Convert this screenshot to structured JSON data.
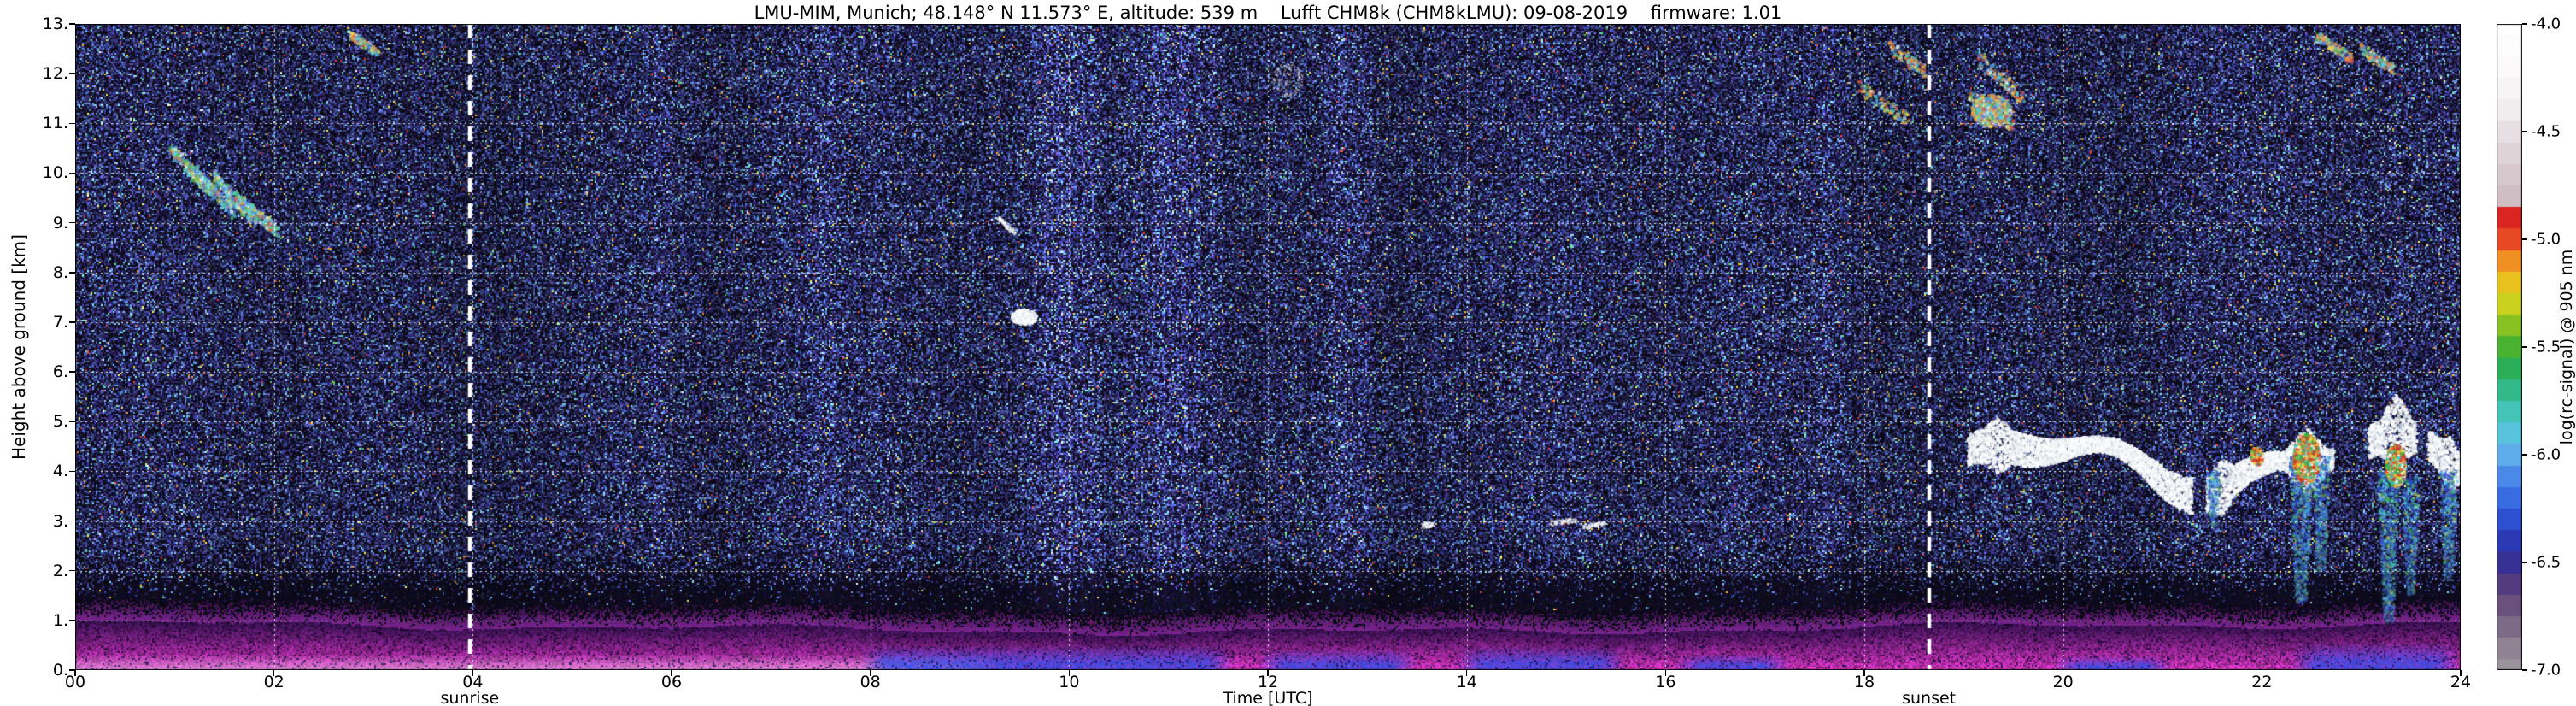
{
  "chart_data": {
    "type": "heatmap",
    "title": "LMU-MIM, Munich; 48.148° N 11.573° E, altitude: 539 m    Lufft CHM8k (CHM8kLMU): 09-08-2019    firmware: 1.01",
    "xlabel": "Time [UTC]",
    "ylabel": "Height above ground [km]",
    "colorbar_label": "log(rc-signal) @ 905 nm",
    "x_range": [
      0,
      24
    ],
    "y_range": [
      0,
      13
    ],
    "x_ticks": [
      {
        "t": 0,
        "label": "00"
      },
      {
        "t": 2,
        "label": "02"
      },
      {
        "t": 4,
        "label": "04"
      },
      {
        "t": 6,
        "label": "06"
      },
      {
        "t": 8,
        "label": "08"
      },
      {
        "t": 10,
        "label": "10"
      },
      {
        "t": 12,
        "label": "12"
      },
      {
        "t": 14,
        "label": "14"
      },
      {
        "t": 16,
        "label": "16"
      },
      {
        "t": 18,
        "label": "18"
      },
      {
        "t": 20,
        "label": "20"
      },
      {
        "t": 22,
        "label": "22"
      },
      {
        "t": 24,
        "label": "24"
      }
    ],
    "y_ticks": [
      {
        "h": 0,
        "label": "0."
      },
      {
        "h": 1,
        "label": "1."
      },
      {
        "h": 2,
        "label": "2."
      },
      {
        "h": 3,
        "label": "3."
      },
      {
        "h": 4,
        "label": "4."
      },
      {
        "h": 5,
        "label": "5."
      },
      {
        "h": 6,
        "label": "6."
      },
      {
        "h": 7,
        "label": "7."
      },
      {
        "h": 8,
        "label": "8."
      },
      {
        "h": 9,
        "label": "9."
      },
      {
        "h": 10,
        "label": "10."
      },
      {
        "h": 11,
        "label": "11."
      },
      {
        "h": 12,
        "label": "12."
      },
      {
        "h": 13,
        "label": "13."
      }
    ],
    "colorbar_ticks": [
      {
        "v": -4.0,
        "label": "-4.0"
      },
      {
        "v": -4.5,
        "label": "-4.5"
      },
      {
        "v": -5.0,
        "label": "-5.0"
      },
      {
        "v": -5.5,
        "label": "-5.5"
      },
      {
        "v": -6.0,
        "label": "-6.0"
      },
      {
        "v": -6.5,
        "label": "-6.5"
      },
      {
        "v": -7.0,
        "label": "-7.0"
      }
    ],
    "colorbar_range": [
      -7.0,
      -4.0
    ],
    "grid": {
      "x_step": 2,
      "y_step": 1,
      "style": "dotted",
      "color": "#ffffff"
    },
    "annotations": [
      {
        "label": "sunrise",
        "x": 3.97
      },
      {
        "label": "sunset",
        "x": 18.65
      }
    ],
    "colormap": [
      [
        -7.0,
        "#9b939b"
      ],
      [
        -6.9,
        "#8f8292"
      ],
      [
        -6.8,
        "#7d6a86"
      ],
      [
        -6.7,
        "#6a517d"
      ],
      [
        -6.62,
        "#5a3f7e"
      ],
      [
        -6.55,
        "#433387"
      ],
      [
        -6.47,
        "#31309e"
      ],
      [
        -6.38,
        "#2a3cbc"
      ],
      [
        -6.28,
        "#2f55d6"
      ],
      [
        -6.18,
        "#3c71e4"
      ],
      [
        -6.08,
        "#4f90ea"
      ],
      [
        -5.98,
        "#63b4ec"
      ],
      [
        -5.88,
        "#55c8d8"
      ],
      [
        -5.78,
        "#3fc4ae"
      ],
      [
        -5.68,
        "#2fb780"
      ],
      [
        -5.58,
        "#2aac4f"
      ],
      [
        -5.48,
        "#51b42a"
      ],
      [
        -5.38,
        "#97c520"
      ],
      [
        -5.28,
        "#d6d51e"
      ],
      [
        -5.18,
        "#eebc1e"
      ],
      [
        -5.1,
        "#f08f22"
      ],
      [
        -5.02,
        "#e85426"
      ],
      [
        -4.94,
        "#e02a20"
      ],
      [
        -4.86,
        "#d62020"
      ],
      [
        -4.8,
        "#cfbec4"
      ],
      [
        -4.66,
        "#d9ccd1"
      ],
      [
        -4.52,
        "#e6dde1"
      ],
      [
        -4.4,
        "#f1ecee"
      ],
      [
        -4.25,
        "#faf8f9"
      ],
      [
        -4.0,
        "#ffffff"
      ]
    ],
    "noise_columns": [
      {
        "t0": 9.55,
        "t1": 10.4,
        "boost": 0.5
      },
      {
        "t0": 10.45,
        "t1": 11.65,
        "boost": 0.55
      },
      {
        "t0": 12.5,
        "t1": 13.1,
        "boost": 0.3
      },
      {
        "t0": 7.3,
        "t1": 7.7,
        "boost": 0.2
      },
      {
        "t0": 17.3,
        "t1": 17.9,
        "boost": 0.2
      },
      {
        "t0": 5.7,
        "t1": 6.05,
        "boost": 0.2
      }
    ],
    "boundary_layer": {
      "top_km": 0.85,
      "pale_region": {
        "t1": 9.4,
        "h": 0.32
      },
      "blue_patches": [
        {
          "t0": 7.9,
          "t1": 11.65,
          "h": 0.5
        },
        {
          "t0": 11.9,
          "t1": 13.5,
          "h": 0.42
        },
        {
          "t0": 13.9,
          "t1": 15.6,
          "h": 0.48
        },
        {
          "t0": 16.1,
          "t1": 17.25,
          "h": 0.32
        },
        {
          "t0": 19.9,
          "t1": 21.1,
          "h": 0.28
        },
        {
          "t0": 22.3,
          "t1": 24.0,
          "h": 0.55
        }
      ]
    },
    "features": [
      {
        "type": "streaks",
        "name": "cirrus-early-morning",
        "segments": [
          [
            0.95,
            10.5,
            1.4,
            9.55
          ],
          [
            1.15,
            10.15,
            1.6,
            9.2
          ],
          [
            1.4,
            9.95,
            1.8,
            9.0
          ],
          [
            1.62,
            9.5,
            2.05,
            8.8
          ]
        ],
        "width": 0.12,
        "dots": 950,
        "palette": "cirrus",
        "size": 3
      },
      {
        "type": "streaks",
        "name": "speck-top-0250",
        "segments": [
          [
            2.75,
            12.8,
            3.05,
            12.4
          ]
        ],
        "width": 0.08,
        "dots": 140,
        "palette": "cirrus2",
        "size": 3
      },
      {
        "type": "blob",
        "name": "cloud-0930",
        "cx": 9.55,
        "cy": 7.1,
        "rx": 0.13,
        "ry": 0.16,
        "dots": 700,
        "palette": "white",
        "size": 2
      },
      {
        "type": "streaks",
        "name": "wisp-0915",
        "segments": [
          [
            9.28,
            9.1,
            9.45,
            8.8
          ]
        ],
        "width": 0.04,
        "dots": 120,
        "palette": "white",
        "size": 2
      },
      {
        "type": "blob",
        "name": "faint-patch-1210",
        "cx": 12.2,
        "cy": 11.85,
        "rx": 0.16,
        "ry": 0.35,
        "dots": 110,
        "palette": "white",
        "size": 2,
        "alpha": 0.55
      },
      {
        "type": "streaks",
        "name": "cirrus-evening",
        "segments": [
          [
            17.95,
            11.75,
            18.45,
            11.05
          ],
          [
            18.25,
            12.55,
            18.6,
            12.05
          ],
          [
            19.05,
            11.55,
            19.5,
            10.95
          ],
          [
            19.15,
            12.3,
            19.6,
            11.5
          ]
        ],
        "width": 0.14,
        "dots": 500,
        "palette": "cirrus2",
        "size": 3
      },
      {
        "type": "blob",
        "name": "cirrus-cluster-1915",
        "cx": 19.28,
        "cy": 11.25,
        "rx": 0.2,
        "ry": 0.32,
        "dots": 650,
        "palette": "cirrus2",
        "size": 3
      },
      {
        "type": "streaks",
        "name": "cirrus-topright",
        "segments": [
          [
            22.55,
            12.75,
            22.9,
            12.3
          ],
          [
            23.0,
            12.5,
            23.35,
            12.05
          ]
        ],
        "width": 0.1,
        "dots": 280,
        "palette": "cirrus2",
        "size": 3
      },
      {
        "type": "streaks",
        "name": "small-clouds-15utc",
        "segments": [
          [
            14.85,
            2.95,
            15.1,
            3.02
          ],
          [
            15.18,
            2.88,
            15.38,
            2.95
          ],
          [
            13.55,
            2.9,
            13.68,
            2.93
          ]
        ],
        "width": 0.05,
        "dots": 210,
        "palette": "white",
        "size": 2
      }
    ],
    "cloud_band": {
      "name": "evening-cloud-layer",
      "base": 4.15,
      "segments": [
        [
          19.05,
          21.3
        ],
        [
          21.45,
          22.72
        ],
        [
          23.08,
          23.55
        ],
        [
          23.68,
          24.0
        ]
      ],
      "towers": [
        {
          "t": 19.35,
          "w": 0.15,
          "extra": 0.2
        },
        {
          "t": 21.6,
          "w": 0.12,
          "extra": 0.25
        },
        {
          "t": 22.45,
          "w": 0.22,
          "extra": 0.55
        },
        {
          "t": 23.35,
          "w": 0.16,
          "extra": 0.45
        },
        {
          "t": 23.9,
          "w": 0.12,
          "extra": 0.3
        }
      ],
      "cores": [
        {
          "t": 22.45,
          "h": 4.25,
          "rx": 0.13,
          "ry": 0.5,
          "dots": 900
        },
        {
          "t": 23.35,
          "h": 4.1,
          "rx": 0.1,
          "ry": 0.42,
          "dots": 650
        },
        {
          "t": 21.95,
          "h": 4.3,
          "rx": 0.06,
          "ry": 0.18,
          "dots": 140
        }
      ],
      "virga": [
        {
          "t": 22.4,
          "w": 0.12,
          "h0": 1.35,
          "h1": 4.3,
          "dots": 850
        },
        {
          "t": 22.6,
          "w": 0.09,
          "h0": 2.0,
          "h1": 4.3,
          "dots": 480
        },
        {
          "t": 23.28,
          "w": 0.11,
          "h0": 0.95,
          "h1": 4.0,
          "dots": 800
        },
        {
          "t": 23.5,
          "w": 0.09,
          "h0": 1.5,
          "h1": 3.9,
          "dots": 440
        },
        {
          "t": 23.88,
          "w": 0.09,
          "h0": 1.8,
          "h1": 4.0,
          "dots": 400
        },
        {
          "t": 21.52,
          "w": 0.07,
          "h0": 2.9,
          "h1": 4.0,
          "dots": 210
        }
      ]
    },
    "palettes": {
      "cirrus": [
        {
          "c": "#62d2e6",
          "w": 3
        },
        {
          "c": "#4f7fe0",
          "w": 2
        },
        {
          "c": "#49bd66",
          "w": 1.6
        },
        {
          "c": "#e3dc55",
          "w": 1.1
        },
        {
          "c": "#f2f6f8",
          "w": 0.8
        },
        {
          "c": "#d85548",
          "w": 0.45
        },
        {
          "c": "#e89040",
          "w": 0.55
        }
      ],
      "cirrus2": [
        {
          "c": "#e8953f",
          "w": 2.4
        },
        {
          "c": "#ead75a",
          "w": 1.6
        },
        {
          "c": "#58cfe0",
          "w": 2
        },
        {
          "c": "#4f7fe0",
          "w": 1.4
        },
        {
          "c": "#d85548",
          "w": 0.8
        },
        {
          "c": "#eef2f4",
          "w": 0.9
        },
        {
          "c": "#45b868",
          "w": 1
        }
      ],
      "white": [
        {
          "c": "#ffffff",
          "w": 5
        },
        {
          "c": "#e9eff3",
          "w": 2
        },
        {
          "c": "#c9d5dc",
          "w": 1
        }
      ],
      "core": [
        {
          "c": "#e03020",
          "w": 2
        },
        {
          "c": "#f08030",
          "w": 1.5
        },
        {
          "c": "#e8d840",
          "w": 1.6
        },
        {
          "c": "#38b048",
          "w": 2
        },
        {
          "c": "#40c8d8",
          "w": 1.2
        },
        {
          "c": "#ffffff",
          "w": 0.8
        }
      ],
      "virga": [
        {
          "c": "#48c0d8",
          "w": 2
        },
        {
          "c": "#3858d8",
          "w": 2.6
        },
        {
          "c": "#40b050",
          "w": 1.2
        },
        {
          "c": "#2838a8",
          "w": 1.6
        },
        {
          "c": "#d8d048",
          "w": 0.4
        },
        {
          "c": "#80e0e8",
          "w": 0.8
        }
      ]
    }
  }
}
